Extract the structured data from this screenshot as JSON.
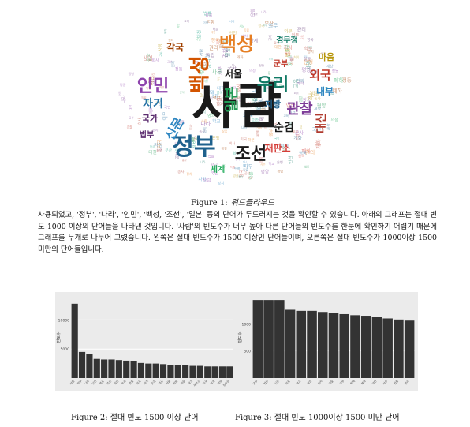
{
  "figure1": {
    "label": "Figure 1:",
    "text": "워드클라우드",
    "main_words": [
      "사람",
      "백성",
      "나라",
      "인민",
      "정부",
      "조선",
      "우리",
      "관찰",
      "외국",
      "순검",
      "대신",
      "마음",
      "일본",
      "자기",
      "서울",
      "지방",
      "재판소",
      "국가",
      "각국",
      "세계",
      "경무청",
      "내부",
      "군부",
      "신문",
      "법부",
      "백성"
    ],
    "small_words": [
      "학교",
      "의정",
      "국민",
      "독립",
      "정치",
      "경찰",
      "공부",
      "학문",
      "군사",
      "회의",
      "세상",
      "황제",
      "폐하",
      "대한",
      "사무",
      "정동",
      "영국",
      "미국",
      "청국",
      "법률",
      "관리",
      "인천",
      "부산",
      "평양",
      "교육",
      "농사",
      "상업",
      "은행",
      "회사",
      "정령",
      "개화",
      "권리",
      "의무",
      "나라",
      "사랑",
      "사람"
    ]
  },
  "paragraph": "사용되었고, '정부', '나라', '인민', '백성, '조선', '일본' 등의 단어가 두드러지는 것을 확인할 수 있습니다. 아래의 그래프는 절대 빈도 1000 이상의 단어들을 나타낸 것입니다. '사람'의 빈도수가 너무 높아 다른 단어들의 빈도수를 한눈에 확인하기 어렵기 때문에 그래프를 두개로 나누어 그렸습니다. 왼쪽은 절대 빈도수가 1500 이상인 단어들이며, 오른쪽은 절대 빈도수가 1000이상 1500 미만의 단어들입니다.",
  "figure2": {
    "label": "Figure 2:",
    "text": "절대 빈도 1500 이상 단어"
  },
  "figure3": {
    "label": "Figure 3:",
    "text": "절대 빈도 1000이상 1500 미만 단어"
  },
  "chart_data": [
    {
      "type": "bar",
      "ylabel": "빈도수",
      "ylim": [
        0,
        14000
      ],
      "yticks": [
        5000,
        10000
      ],
      "categories": [
        "사람",
        "정부",
        "나라",
        "인민",
        "백성",
        "조선",
        "일본",
        "우리",
        "관찰",
        "외국",
        "자기",
        "순검",
        "대신",
        "서울",
        "지방",
        "마음",
        "국가",
        "재판소",
        "각국",
        "세계",
        "내부",
        "경무청"
      ],
      "values": [
        12800,
        4500,
        4200,
        3300,
        3200,
        3200,
        3100,
        3000,
        2900,
        2600,
        2500,
        2500,
        2400,
        2300,
        2300,
        2200,
        2100,
        2100,
        2000,
        2000,
        2000,
        2000
      ],
      "bar_color": "#333333",
      "background": "#ebebeb",
      "grid": true
    },
    {
      "type": "bar",
      "ylabel": "빈도수",
      "ylim": [
        0,
        1500
      ],
      "yticks": [
        500,
        1000
      ],
      "categories": [
        "군부",
        "법부",
        "신문",
        "의정",
        "학교",
        "국민",
        "정치",
        "경찰",
        "공부",
        "황제",
        "폐하",
        "대한",
        "사무",
        "법률",
        "관리"
      ],
      "values": [
        1440,
        1440,
        1440,
        1260,
        1240,
        1240,
        1220,
        1200,
        1180,
        1160,
        1150,
        1130,
        1100,
        1080,
        1060
      ],
      "bar_color": "#333333",
      "background": "#ebebeb",
      "grid": true
    }
  ]
}
